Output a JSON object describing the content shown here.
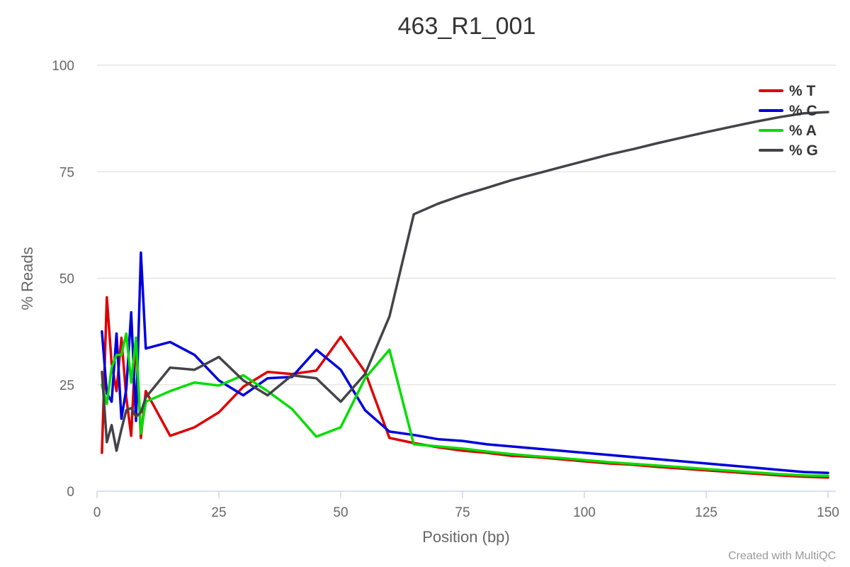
{
  "chart_data": {
    "type": "line",
    "title": "463_R1_001",
    "xlabel": "Position (bp)",
    "ylabel": "% Reads",
    "xlim": [
      0,
      152
    ],
    "ylim": [
      0,
      100
    ],
    "x_ticks": [
      "0",
      "25",
      "50",
      "75",
      "100",
      "125",
      "150"
    ],
    "y_ticks": [
      "0",
      "25",
      "50",
      "75",
      "100"
    ],
    "grid": true,
    "legend_position": "top-right",
    "credit": "Created with MultiQC",
    "series": [
      {
        "name": "% T",
        "color": "#dd0000",
        "x": [
          1,
          2,
          3,
          4,
          5,
          6,
          7,
          8,
          9,
          10,
          15,
          20,
          25,
          30,
          35,
          40,
          45,
          50,
          55,
          60,
          65,
          70,
          75,
          80,
          85,
          90,
          95,
          100,
          105,
          110,
          115,
          120,
          125,
          130,
          135,
          140,
          145,
          150
        ],
        "y": [
          9,
          45.5,
          30,
          23.5,
          36,
          22,
          13,
          36,
          12.5,
          23.5,
          13,
          15,
          18.5,
          24.5,
          28,
          27.5,
          28.3,
          36.2,
          28,
          12.5,
          11.3,
          10.3,
          9.5,
          9,
          8.3,
          8,
          7.5,
          7,
          6.5,
          6.2,
          5.7,
          5.3,
          4.9,
          4.5,
          4.1,
          3.7,
          3.4,
          3.2
        ]
      },
      {
        "name": "% C",
        "color": "#0000dd",
        "x": [
          1,
          2,
          3,
          4,
          5,
          6,
          7,
          8,
          9,
          10,
          15,
          20,
          25,
          30,
          35,
          40,
          45,
          50,
          55,
          60,
          65,
          70,
          75,
          80,
          85,
          90,
          95,
          100,
          105,
          110,
          115,
          120,
          125,
          130,
          135,
          140,
          145,
          150
        ],
        "y": [
          37.5,
          23,
          21,
          37,
          17,
          24,
          42,
          16.5,
          56,
          33.5,
          35,
          32,
          26,
          22.5,
          26.5,
          26.8,
          33.2,
          28.5,
          19,
          14,
          13.2,
          12.2,
          11.8,
          11,
          10.5,
          10,
          9.5,
          9,
          8.5,
          8,
          7.5,
          7,
          6.5,
          6,
          5.5,
          5,
          4.5,
          4.3
        ]
      },
      {
        "name": "% A",
        "color": "#00dd00",
        "x": [
          1,
          2,
          3,
          4,
          5,
          6,
          7,
          8,
          9,
          10,
          15,
          20,
          25,
          30,
          35,
          40,
          45,
          50,
          55,
          60,
          65,
          70,
          75,
          80,
          85,
          90,
          95,
          100,
          105,
          110,
          115,
          120,
          125,
          130,
          135,
          140,
          145,
          150
        ],
        "y": [
          25,
          20.5,
          29,
          32,
          32,
          37,
          25.5,
          36,
          13.5,
          21,
          23.5,
          25.5,
          24.8,
          27.2,
          23.5,
          19.3,
          12.8,
          15,
          26.5,
          33.2,
          11,
          10.5,
          10,
          9.3,
          8.7,
          8.2,
          7.8,
          7.3,
          6.8,
          6.4,
          6,
          5.6,
          5.2,
          4.8,
          4.4,
          4,
          3.7,
          3.6
        ]
      },
      {
        "name": "% G",
        "color": "#434348",
        "x": [
          1,
          2,
          3,
          4,
          5,
          6,
          7,
          8,
          9,
          10,
          15,
          20,
          25,
          30,
          35,
          40,
          45,
          50,
          55,
          60,
          65,
          70,
          75,
          80,
          85,
          90,
          95,
          100,
          105,
          110,
          115,
          120,
          125,
          130,
          135,
          140,
          145,
          150
        ],
        "y": [
          28,
          11.5,
          15.5,
          9.5,
          14.5,
          19,
          19.5,
          17.5,
          18.5,
          22,
          29,
          28.5,
          31.5,
          26,
          22.5,
          27.2,
          26.5,
          21,
          27.5,
          41,
          65,
          67.5,
          69.5,
          71.2,
          73,
          74.5,
          76,
          77.5,
          79,
          80.3,
          81.7,
          83,
          84.3,
          85.5,
          86.7,
          87.8,
          88.7,
          89
        ]
      }
    ]
  }
}
